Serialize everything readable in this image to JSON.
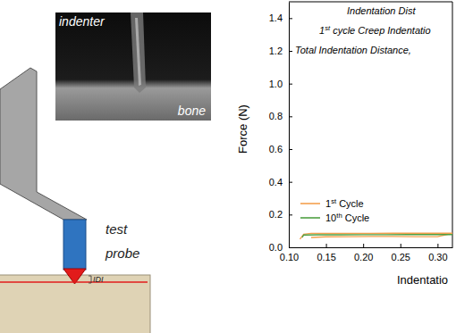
{
  "photo": {
    "top_label": "indenter",
    "bottom_label": "bone"
  },
  "schematic": {
    "probe_label": [
      "test",
      "probe"
    ],
    "depth_label": "IDI"
  },
  "chart_data": {
    "type": "line",
    "annotations": [
      "Indentation Dist",
      "1st cycle Creep Indentatio",
      "Total Indentation Distance,"
    ],
    "x_label": "Indentatio",
    "y_label": "Force (N)",
    "xlim": [
      0.1,
      0.32
    ],
    "ylim": [
      0,
      1.5
    ],
    "xticks": [
      {
        "value": 0.1,
        "label": "0.10"
      },
      {
        "value": 0.15,
        "label": "0.15"
      },
      {
        "value": 0.2,
        "label": "0.20"
      },
      {
        "value": 0.25,
        "label": "0.25"
      },
      {
        "value": 0.3,
        "label": "0.30"
      }
    ],
    "yticks": [
      {
        "value": 0,
        "label": "0.0"
      },
      {
        "value": 0.2,
        "label": "0.2"
      },
      {
        "value": 0.4,
        "label": "0.4"
      },
      {
        "value": 0.6,
        "label": "0.6"
      },
      {
        "value": 0.8,
        "label": "0.8"
      },
      {
        "value": 1.0,
        "label": "1.0"
      },
      {
        "value": 1.2,
        "label": "1.2"
      },
      {
        "value": 1.4,
        "label": "1.4"
      }
    ],
    "legend": "lower left",
    "line_style": "solid",
    "series": [
      {
        "name": "1st Cycle",
        "color": "#f4a04e",
        "x": [
          0.115,
          0.12,
          0.13,
          0.15,
          0.18,
          0.21,
          0.24,
          0.27,
          0.3,
          0.32,
          0.3,
          0.27,
          0.24,
          0.21,
          0.18,
          0.15,
          0.13
        ],
        "values": [
          0.05,
          0.08,
          0.085,
          0.085,
          0.085,
          0.085,
          0.086,
          0.086,
          0.086,
          0.086,
          0.065,
          0.065,
          0.066,
          0.066,
          0.065,
          0.064,
          0.06
        ]
      },
      {
        "name": "10th Cycle",
        "color": "#4fa043",
        "x": [
          0.118,
          0.12,
          0.14,
          0.17,
          0.2,
          0.23,
          0.26,
          0.29,
          0.32
        ],
        "values": [
          0.06,
          0.075,
          0.076,
          0.076,
          0.077,
          0.077,
          0.078,
          0.078,
          0.078
        ]
      }
    ]
  }
}
